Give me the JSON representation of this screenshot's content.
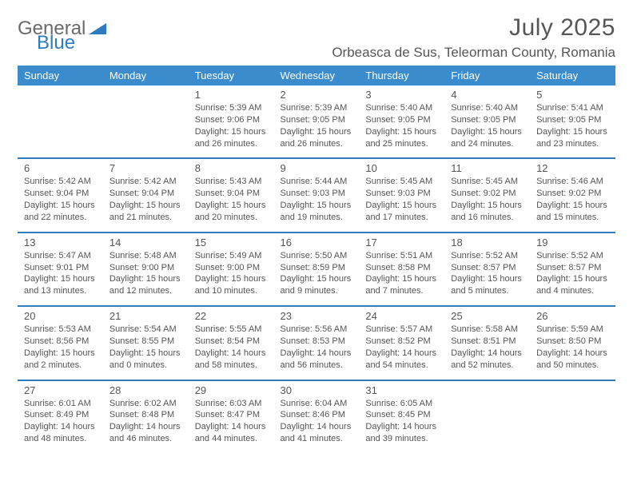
{
  "logo": {
    "word1": "General",
    "word2": "Blue"
  },
  "title": "July 2025",
  "location": "Orbeasca de Sus, Teleorman County, Romania",
  "colors": {
    "header_bg": "#3b8ccc",
    "header_text": "#ffffff",
    "row_border": "#2f7bbf",
    "body_text": "#555555",
    "title_text": "#565656",
    "logo_grey": "#6a6a6a",
    "logo_blue": "#2f7bbf",
    "page_bg": "#ffffff"
  },
  "typography": {
    "title_fontsize": 30,
    "location_fontsize": 17,
    "weekday_fontsize": 13,
    "daynum_fontsize": 13,
    "body_fontsize": 11
  },
  "weekdays": [
    "Sunday",
    "Monday",
    "Tuesday",
    "Wednesday",
    "Thursday",
    "Friday",
    "Saturday"
  ],
  "weeks": [
    [
      null,
      null,
      {
        "day": "1",
        "sunrise": "Sunrise: 5:39 AM",
        "sunset": "Sunset: 9:06 PM",
        "daylight": "Daylight: 15 hours and 26 minutes."
      },
      {
        "day": "2",
        "sunrise": "Sunrise: 5:39 AM",
        "sunset": "Sunset: 9:05 PM",
        "daylight": "Daylight: 15 hours and 26 minutes."
      },
      {
        "day": "3",
        "sunrise": "Sunrise: 5:40 AM",
        "sunset": "Sunset: 9:05 PM",
        "daylight": "Daylight: 15 hours and 25 minutes."
      },
      {
        "day": "4",
        "sunrise": "Sunrise: 5:40 AM",
        "sunset": "Sunset: 9:05 PM",
        "daylight": "Daylight: 15 hours and 24 minutes."
      },
      {
        "day": "5",
        "sunrise": "Sunrise: 5:41 AM",
        "sunset": "Sunset: 9:05 PM",
        "daylight": "Daylight: 15 hours and 23 minutes."
      }
    ],
    [
      {
        "day": "6",
        "sunrise": "Sunrise: 5:42 AM",
        "sunset": "Sunset: 9:04 PM",
        "daylight": "Daylight: 15 hours and 22 minutes."
      },
      {
        "day": "7",
        "sunrise": "Sunrise: 5:42 AM",
        "sunset": "Sunset: 9:04 PM",
        "daylight": "Daylight: 15 hours and 21 minutes."
      },
      {
        "day": "8",
        "sunrise": "Sunrise: 5:43 AM",
        "sunset": "Sunset: 9:04 PM",
        "daylight": "Daylight: 15 hours and 20 minutes."
      },
      {
        "day": "9",
        "sunrise": "Sunrise: 5:44 AM",
        "sunset": "Sunset: 9:03 PM",
        "daylight": "Daylight: 15 hours and 19 minutes."
      },
      {
        "day": "10",
        "sunrise": "Sunrise: 5:45 AM",
        "sunset": "Sunset: 9:03 PM",
        "daylight": "Daylight: 15 hours and 17 minutes."
      },
      {
        "day": "11",
        "sunrise": "Sunrise: 5:45 AM",
        "sunset": "Sunset: 9:02 PM",
        "daylight": "Daylight: 15 hours and 16 minutes."
      },
      {
        "day": "12",
        "sunrise": "Sunrise: 5:46 AM",
        "sunset": "Sunset: 9:02 PM",
        "daylight": "Daylight: 15 hours and 15 minutes."
      }
    ],
    [
      {
        "day": "13",
        "sunrise": "Sunrise: 5:47 AM",
        "sunset": "Sunset: 9:01 PM",
        "daylight": "Daylight: 15 hours and 13 minutes."
      },
      {
        "day": "14",
        "sunrise": "Sunrise: 5:48 AM",
        "sunset": "Sunset: 9:00 PM",
        "daylight": "Daylight: 15 hours and 12 minutes."
      },
      {
        "day": "15",
        "sunrise": "Sunrise: 5:49 AM",
        "sunset": "Sunset: 9:00 PM",
        "daylight": "Daylight: 15 hours and 10 minutes."
      },
      {
        "day": "16",
        "sunrise": "Sunrise: 5:50 AM",
        "sunset": "Sunset: 8:59 PM",
        "daylight": "Daylight: 15 hours and 9 minutes."
      },
      {
        "day": "17",
        "sunrise": "Sunrise: 5:51 AM",
        "sunset": "Sunset: 8:58 PM",
        "daylight": "Daylight: 15 hours and 7 minutes."
      },
      {
        "day": "18",
        "sunrise": "Sunrise: 5:52 AM",
        "sunset": "Sunset: 8:57 PM",
        "daylight": "Daylight: 15 hours and 5 minutes."
      },
      {
        "day": "19",
        "sunrise": "Sunrise: 5:52 AM",
        "sunset": "Sunset: 8:57 PM",
        "daylight": "Daylight: 15 hours and 4 minutes."
      }
    ],
    [
      {
        "day": "20",
        "sunrise": "Sunrise: 5:53 AM",
        "sunset": "Sunset: 8:56 PM",
        "daylight": "Daylight: 15 hours and 2 minutes."
      },
      {
        "day": "21",
        "sunrise": "Sunrise: 5:54 AM",
        "sunset": "Sunset: 8:55 PM",
        "daylight": "Daylight: 15 hours and 0 minutes."
      },
      {
        "day": "22",
        "sunrise": "Sunrise: 5:55 AM",
        "sunset": "Sunset: 8:54 PM",
        "daylight": "Daylight: 14 hours and 58 minutes."
      },
      {
        "day": "23",
        "sunrise": "Sunrise: 5:56 AM",
        "sunset": "Sunset: 8:53 PM",
        "daylight": "Daylight: 14 hours and 56 minutes."
      },
      {
        "day": "24",
        "sunrise": "Sunrise: 5:57 AM",
        "sunset": "Sunset: 8:52 PM",
        "daylight": "Daylight: 14 hours and 54 minutes."
      },
      {
        "day": "25",
        "sunrise": "Sunrise: 5:58 AM",
        "sunset": "Sunset: 8:51 PM",
        "daylight": "Daylight: 14 hours and 52 minutes."
      },
      {
        "day": "26",
        "sunrise": "Sunrise: 5:59 AM",
        "sunset": "Sunset: 8:50 PM",
        "daylight": "Daylight: 14 hours and 50 minutes."
      }
    ],
    [
      {
        "day": "27",
        "sunrise": "Sunrise: 6:01 AM",
        "sunset": "Sunset: 8:49 PM",
        "daylight": "Daylight: 14 hours and 48 minutes."
      },
      {
        "day": "28",
        "sunrise": "Sunrise: 6:02 AM",
        "sunset": "Sunset: 8:48 PM",
        "daylight": "Daylight: 14 hours and 46 minutes."
      },
      {
        "day": "29",
        "sunrise": "Sunrise: 6:03 AM",
        "sunset": "Sunset: 8:47 PM",
        "daylight": "Daylight: 14 hours and 44 minutes."
      },
      {
        "day": "30",
        "sunrise": "Sunrise: 6:04 AM",
        "sunset": "Sunset: 8:46 PM",
        "daylight": "Daylight: 14 hours and 41 minutes."
      },
      {
        "day": "31",
        "sunrise": "Sunrise: 6:05 AM",
        "sunset": "Sunset: 8:45 PM",
        "daylight": "Daylight: 14 hours and 39 minutes."
      },
      null,
      null
    ]
  ]
}
